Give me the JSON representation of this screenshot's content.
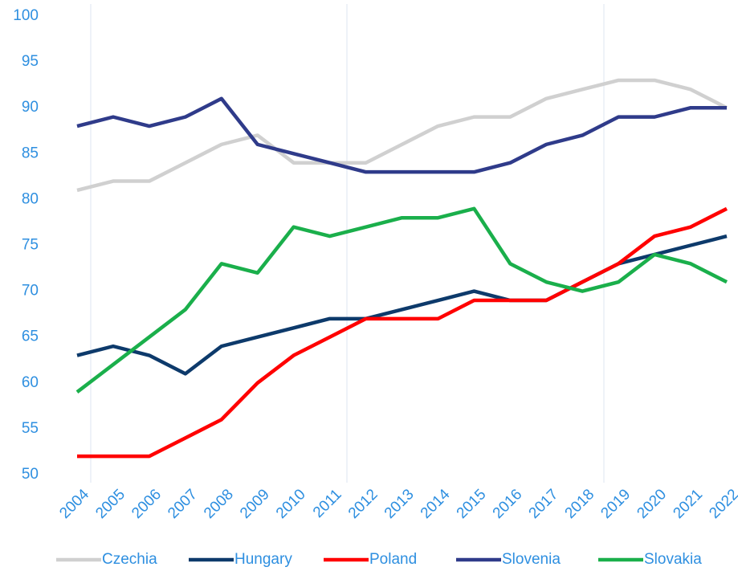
{
  "chart_data": {
    "type": "line",
    "categories": [
      "2004",
      "2005",
      "2006",
      "2007",
      "2008",
      "2009",
      "2010",
      "2011",
      "2012",
      "2013",
      "2014",
      "2015",
      "2016",
      "2017",
      "2018",
      "2019",
      "2020",
      "2021",
      "2022"
    ],
    "series": [
      {
        "name": "Czechia",
        "color": "#d0d0d0",
        "values": [
          81,
          82,
          82,
          84,
          86,
          87,
          84,
          84,
          84,
          86,
          88,
          89,
          89,
          91,
          92,
          93,
          93,
          92,
          90
        ]
      },
      {
        "name": "Hungary",
        "color": "#0d3a6b",
        "values": [
          63,
          64,
          63,
          61,
          64,
          65,
          66,
          67,
          67,
          68,
          69,
          70,
          69,
          69,
          71,
          73,
          74,
          75,
          76
        ]
      },
      {
        "name": "Poland",
        "color": "#ff0000",
        "values": [
          52,
          52,
          52,
          54,
          56,
          60,
          63,
          65,
          67,
          67,
          67,
          69,
          69,
          69,
          71,
          73,
          76,
          77,
          79
        ]
      },
      {
        "name": "Slovenia",
        "color": "#2f3b8a",
        "values": [
          88,
          89,
          88,
          89,
          91,
          86,
          85,
          84,
          83,
          83,
          83,
          83,
          84,
          86,
          87,
          89,
          89,
          90,
          90
        ]
      },
      {
        "name": "Slovakia",
        "color": "#1aaf4b",
        "values": [
          59,
          62,
          65,
          68,
          73,
          72,
          77,
          76,
          77,
          78,
          78,
          79,
          73,
          71,
          70,
          71,
          74,
          73,
          71
        ]
      }
    ],
    "ylim": [
      50,
      100
    ],
    "yticks": [
      50,
      55,
      60,
      65,
      70,
      75,
      80,
      85,
      90,
      95,
      100
    ],
    "grid": false,
    "legend": "bottom"
  }
}
